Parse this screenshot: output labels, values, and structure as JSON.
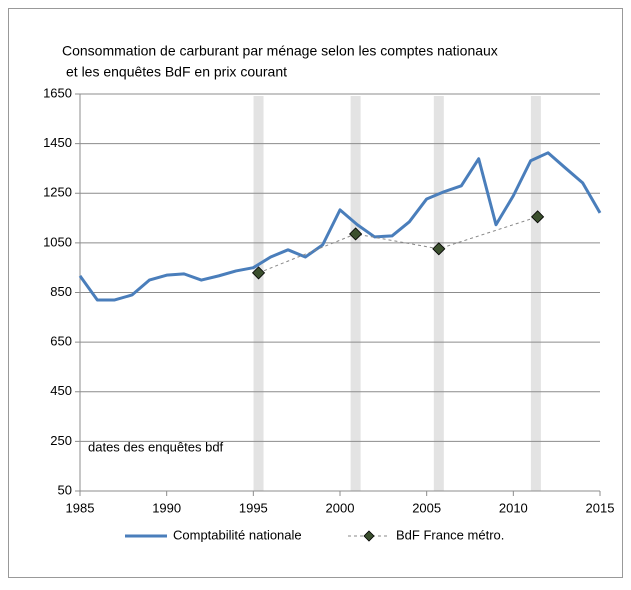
{
  "chart_data": {
    "type": "line",
    "title": "Consommation de carburant par ménage selon les comptes nationaux",
    "subtitle": "et les enquêtes BdF en prix courant",
    "annotation": "dates des enquêtes bdf",
    "bands": [
      1995.3,
      2000.9,
      2005.7,
      2011.3
    ],
    "band_color": "#e3e3e3",
    "series": [
      {
        "name": "Comptabilité nationale",
        "color": "#4a7ebb",
        "style": "solid",
        "x": [
          1985,
          1986,
          1987,
          1988,
          1989,
          1990,
          1991,
          1992,
          1993,
          1994,
          1995,
          1996,
          1997,
          1998,
          1999,
          2000,
          2001,
          2002,
          2003,
          2004,
          2005,
          2006,
          2007,
          2008,
          2009,
          2010,
          2011,
          2012,
          2013,
          2014,
          2015
        ],
        "values": [
          917,
          820,
          820,
          840,
          900,
          920,
          925,
          900,
          917,
          937,
          950,
          993,
          1022,
          993,
          1042,
          1183,
          1123,
          1074,
          1078,
          1135,
          1227,
          1256,
          1280,
          1389,
          1123,
          1240,
          1381,
          1413,
          1352,
          1292,
          1171
        ]
      },
      {
        "name": "BdF France métro.",
        "color": "#888888",
        "marker_color": "#3b4f2e",
        "style": "dashed",
        "x": [
          1995.3,
          2000.9,
          2005.7,
          2011.4
        ],
        "values": [
          929,
          1086,
          1026,
          1155
        ]
      }
    ],
    "xlim": [
      1985,
      2015
    ],
    "xticks": [
      1985,
      1990,
      1995,
      2000,
      2005,
      2010,
      2015
    ],
    "ylim": [
      50,
      1650
    ],
    "yticks": [
      50,
      250,
      450,
      650,
      850,
      1050,
      1250,
      1450,
      1650
    ],
    "grid": true
  }
}
